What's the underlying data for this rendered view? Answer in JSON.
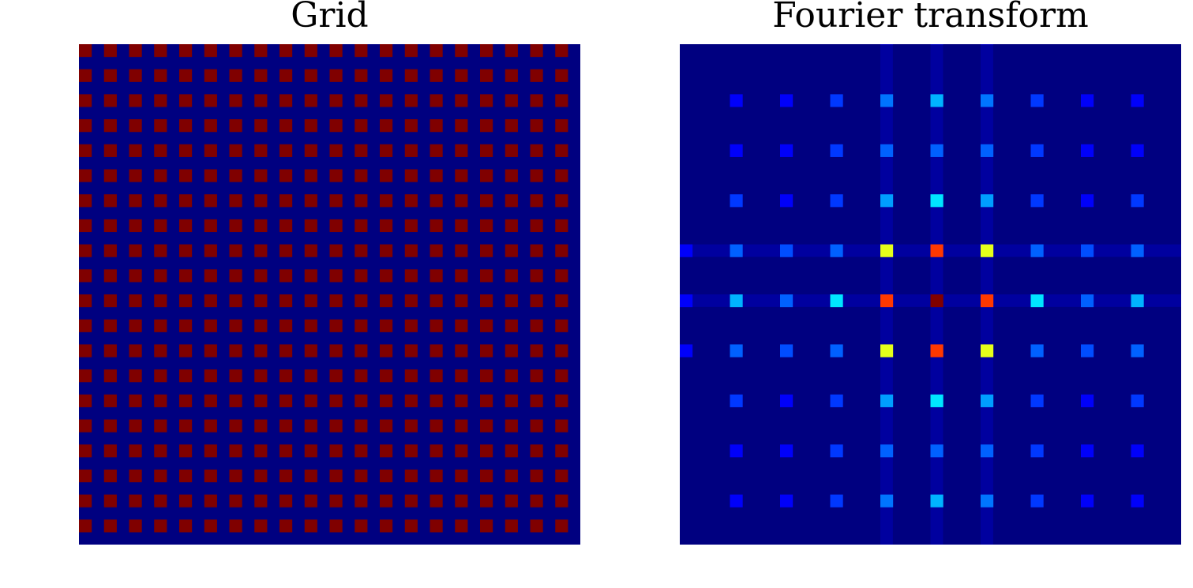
{
  "figure": {
    "panels": [
      {
        "title": "Grid"
      },
      {
        "title": "Fourier transform"
      }
    ]
  },
  "colors": {
    "background": "#000080",
    "grid_dot": "#800000",
    "colormap": "jet"
  },
  "chart_data": [
    {
      "type": "heatmap",
      "title": "Grid",
      "rows": 40,
      "cols": 40,
      "colormap": "jet",
      "vrange": [
        0,
        1
      ],
      "background_value": 0,
      "dot_value": 1,
      "dot_rows": [
        0,
        2,
        4,
        6,
        8,
        10,
        12,
        14,
        16,
        18,
        20,
        22,
        24,
        26,
        28,
        30,
        32,
        34,
        36,
        38
      ],
      "dot_cols": [
        0,
        2,
        4,
        6,
        8,
        10,
        12,
        14,
        16,
        18,
        20,
        22,
        24,
        26,
        28,
        30,
        32,
        34,
        36,
        38
      ],
      "grid": false
    },
    {
      "type": "heatmap",
      "title": "Fourier transform",
      "rows": 40,
      "cols": 40,
      "colormap": "jet",
      "vrange": [
        0,
        1
      ],
      "background_value": 0,
      "peak_rows": [
        -1,
        4,
        8,
        12,
        16,
        20,
        24,
        28,
        32,
        36,
        40
      ],
      "peak_cols": [
        0,
        4,
        8,
        12,
        16,
        20,
        24,
        28,
        32,
        36,
        40
      ],
      "peaks": [
        [
          0.0,
          0.0,
          0.0,
          0.0,
          0.12,
          0.14,
          0.12,
          0.0,
          0.0,
          0.0,
          0.0
        ],
        [
          0.0,
          0.12,
          0.12,
          0.18,
          0.24,
          0.3,
          0.24,
          0.18,
          0.12,
          0.12,
          0.0
        ],
        [
          0.0,
          0.12,
          0.12,
          0.18,
          0.22,
          0.22,
          0.22,
          0.18,
          0.12,
          0.12,
          0.0
        ],
        [
          0.0,
          0.18,
          0.12,
          0.18,
          0.28,
          0.35,
          0.28,
          0.18,
          0.12,
          0.18,
          0.0
        ],
        [
          0.12,
          0.22,
          0.2,
          0.22,
          0.6,
          0.82,
          0.6,
          0.22,
          0.2,
          0.22,
          0.12
        ],
        [
          0.12,
          0.3,
          0.22,
          0.35,
          0.82,
          1.0,
          0.82,
          0.35,
          0.22,
          0.3,
          0.12
        ],
        [
          0.12,
          0.22,
          0.2,
          0.22,
          0.6,
          0.82,
          0.6,
          0.22,
          0.2,
          0.22,
          0.12
        ],
        [
          0.0,
          0.18,
          0.12,
          0.18,
          0.28,
          0.35,
          0.28,
          0.18,
          0.12,
          0.18,
          0.0
        ],
        [
          0.0,
          0.12,
          0.12,
          0.18,
          0.22,
          0.22,
          0.22,
          0.18,
          0.12,
          0.12,
          0.0
        ],
        [
          0.0,
          0.12,
          0.12,
          0.18,
          0.24,
          0.3,
          0.24,
          0.18,
          0.12,
          0.12,
          0.0
        ],
        [
          0.0,
          0.0,
          0.0,
          0.0,
          0.12,
          0.14,
          0.12,
          0.0,
          0.0,
          0.0,
          0.0
        ]
      ],
      "streak_value": 0.06,
      "grid": false
    }
  ]
}
